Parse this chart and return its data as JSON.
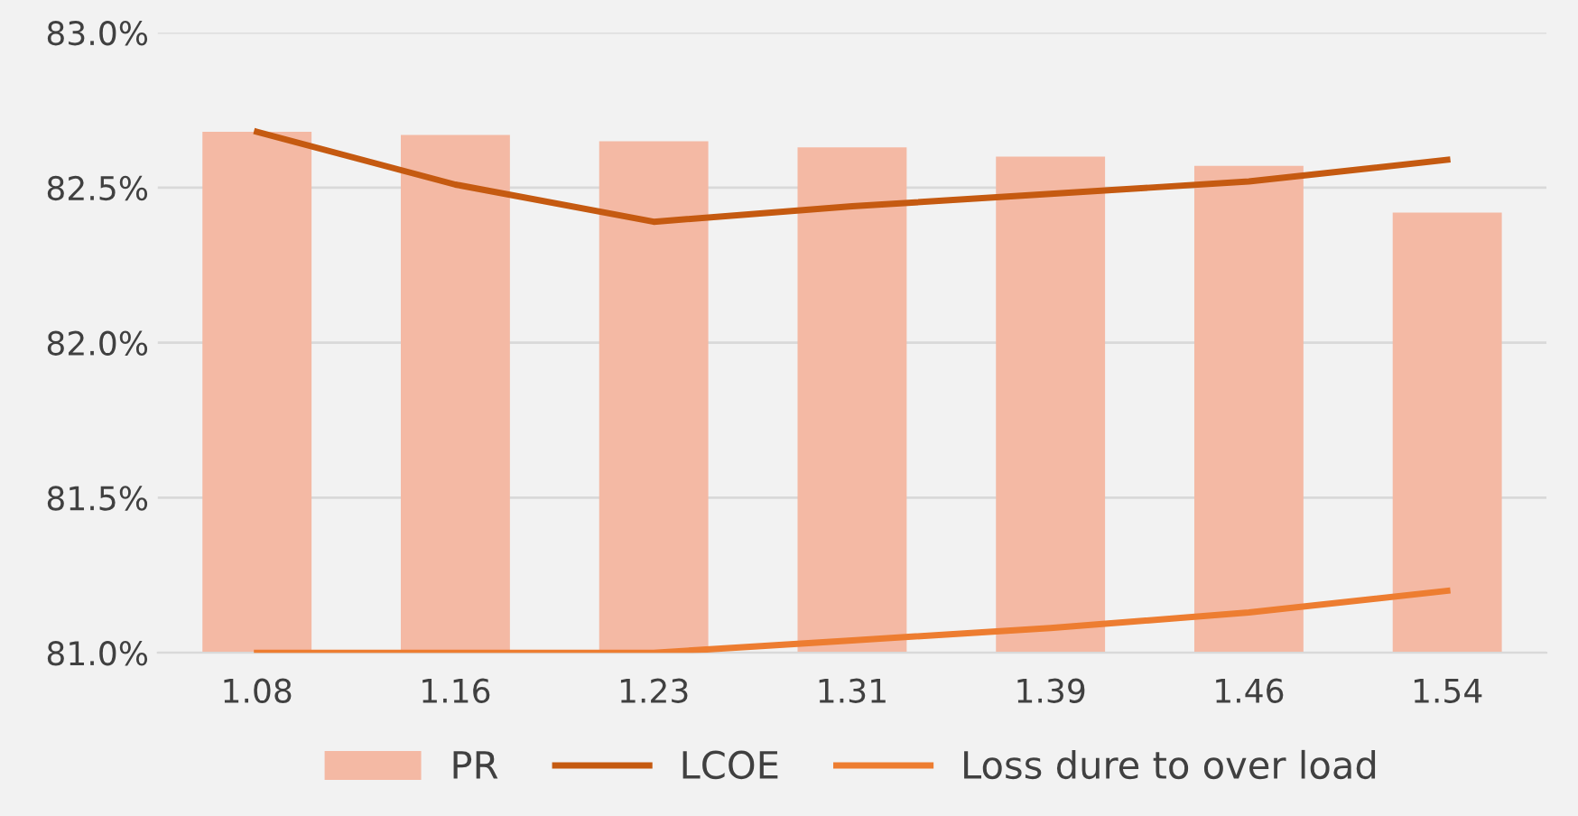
{
  "chart_data": {
    "type": "bar",
    "categories": [
      "1.08",
      "1.16",
      "1.23",
      "1.31",
      "1.39",
      "1.46",
      "1.54"
    ],
    "series": [
      {
        "name": "PR",
        "color": "#f4b9a4",
        "values": [
          82.68,
          82.67,
          82.65,
          82.63,
          82.6,
          82.57,
          82.42
        ]
      },
      {
        "name": "LCOE",
        "type": "line",
        "color": "#c55a11",
        "values": [
          82.68,
          82.51,
          82.39,
          82.44,
          82.48,
          82.52,
          82.59
        ]
      },
      {
        "name": "Loss dure to over load",
        "type": "line",
        "color": "#ed7d31",
        "values": [
          81.0,
          81.0,
          81.0,
          81.04,
          81.08,
          81.13,
          81.2
        ]
      }
    ],
    "ylim": [
      81.0,
      83.0
    ],
    "yticks": [
      {
        "value": 81.0,
        "label": "81.0%"
      },
      {
        "value": 81.5,
        "label": "81.5%"
      },
      {
        "value": 82.0,
        "label": "82.0%"
      },
      {
        "value": 82.5,
        "label": "82.5%"
      },
      {
        "value": 83.0,
        "label": "83.0%"
      }
    ],
    "grid": "y",
    "legend": "bottom",
    "marker": "none",
    "line_style": "solid"
  }
}
